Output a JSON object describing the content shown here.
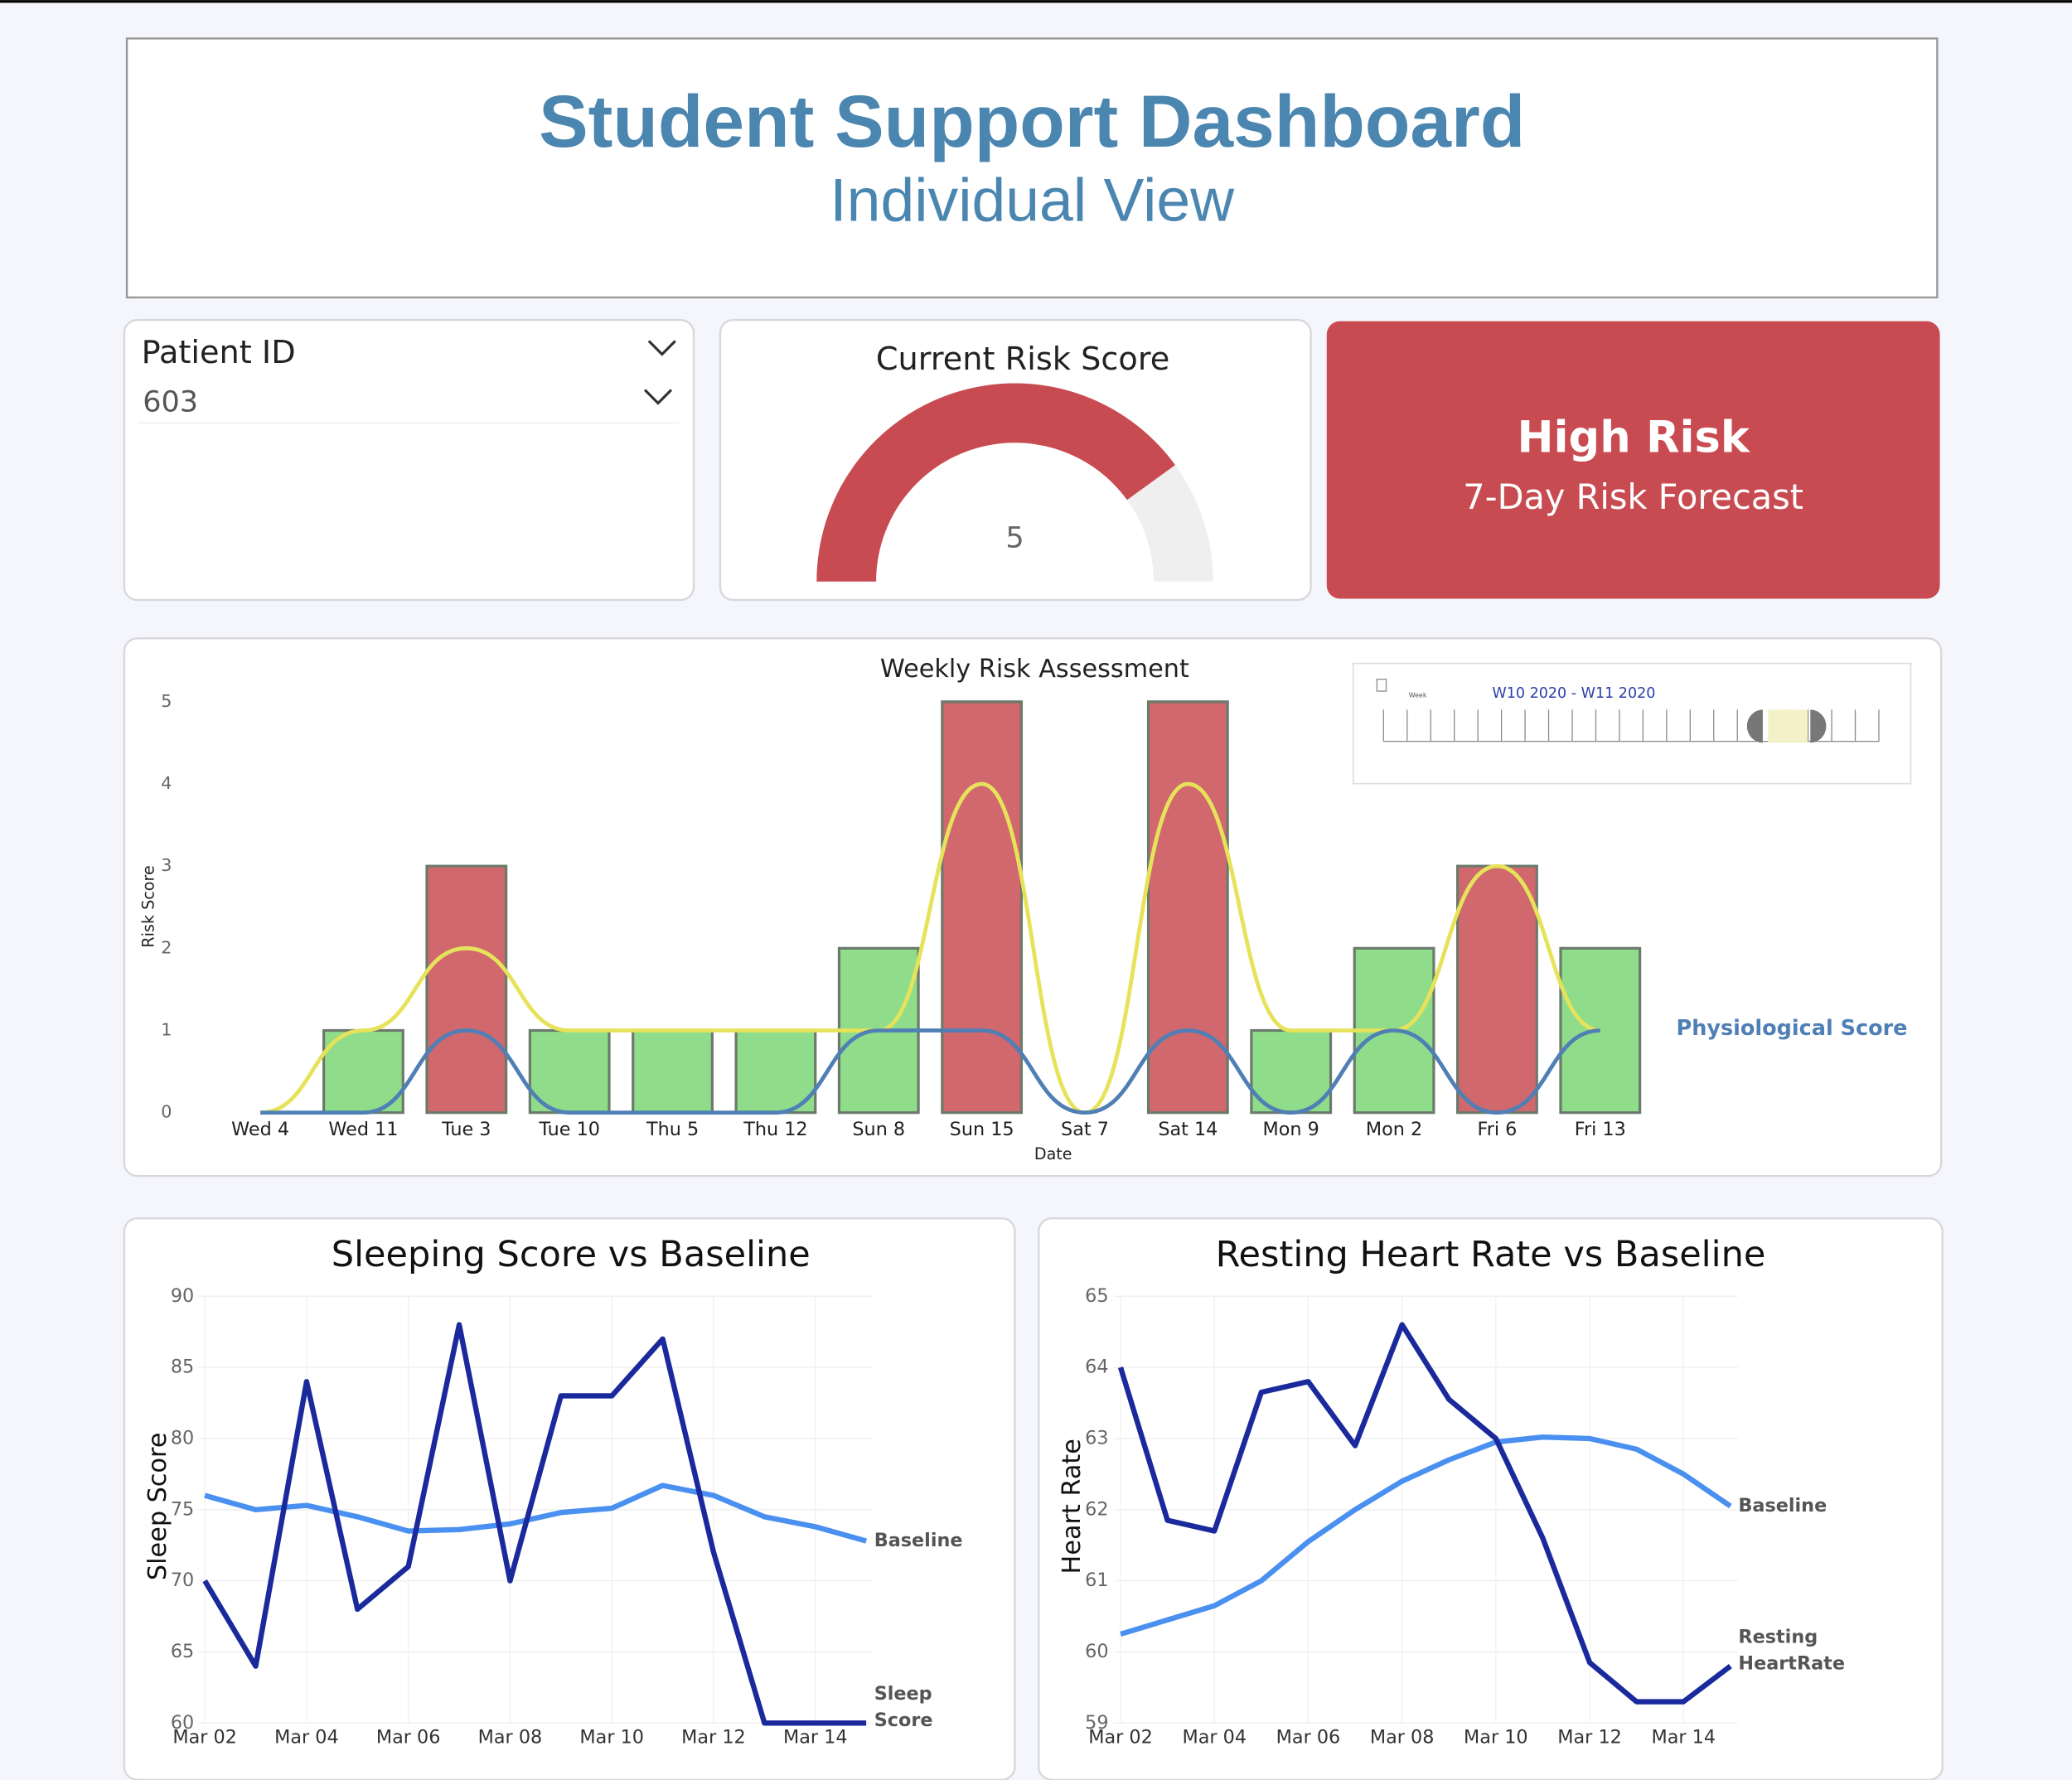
{
  "header": {
    "title": "Student Support Dashboard",
    "subtitle": "Individual View"
  },
  "patient_filter": {
    "label": "Patient ID",
    "value": "603"
  },
  "gauge": {
    "title": "Current Risk Score",
    "value": 5,
    "range": [
      0,
      6.25
    ],
    "color": "#c84b51"
  },
  "risk_card": {
    "title": "High Risk",
    "subtitle": "7-Day Risk Forecast",
    "color": "#c84b51"
  },
  "slicer": {
    "label": "Week",
    "range": "W10 2020 - W11 2020"
  },
  "chart_data": [
    {
      "type": "bar",
      "title": "Weekly Risk Assessment",
      "x_label": "Date",
      "y_label": "Risk Score",
      "categories": [
        "Wed 4",
        "Wed 11",
        "Tue 3",
        "Tue 10",
        "Thu 5",
        "Thu 12",
        "Sun 8",
        "Sun 15",
        "Sat 7",
        "Sat 14",
        "Mon 9",
        "Mon 2",
        "Fri 6",
        "Fri 13"
      ],
      "values": [
        0,
        1,
        3,
        1,
        1,
        1,
        2,
        5,
        0,
        5,
        1,
        2,
        3,
        2
      ],
      "colors": [
        "#8fdc8a",
        "#8fdc8a",
        "#d0686e",
        "#8fdc8a",
        "#8fdc8a",
        "#8fdc8a",
        "#8fdc8a",
        "#d0686e",
        "#8fdc8a",
        "#d0686e",
        "#8fdc8a",
        "#8fdc8a",
        "#d0686e",
        "#8fdc8a"
      ],
      "series": [
        {
          "color": "#e6e35a",
          "values": [
            0,
            1,
            2,
            1,
            1,
            1,
            1,
            4,
            0,
            4,
            1,
            1,
            3,
            1
          ]
        },
        {
          "name": "Physiological Score",
          "color": "#4f7fb5",
          "values": [
            0,
            0,
            1,
            0,
            0,
            0,
            1,
            1,
            0,
            1,
            0,
            1,
            0,
            1
          ]
        }
      ],
      "ylim": [
        0,
        5
      ],
      "yticks": [
        0,
        1,
        2,
        3,
        4,
        5
      ]
    },
    {
      "type": "line",
      "title": "Sleeping Score vs Baseline",
      "y_label": "Sleep Score",
      "x": [
        "Mar 02",
        "Mar 03",
        "Mar 04",
        "Mar 05",
        "Mar 06",
        "Mar 07",
        "Mar 08",
        "Mar 09",
        "Mar 10",
        "Mar 11",
        "Mar 12",
        "Mar 13",
        "Mar 14",
        "Mar 15"
      ],
      "xticks": [
        "Mar 02",
        "Mar 04",
        "Mar 06",
        "Mar 08",
        "Mar 10",
        "Mar 12",
        "Mar 14"
      ],
      "series": [
        {
          "name": "Baseline",
          "color": "#4a90f0",
          "values": [
            76,
            75,
            75.3,
            74.5,
            73.5,
            73.6,
            74,
            74.8,
            75.1,
            76.7,
            76,
            74.5,
            73.8,
            72.8
          ]
        },
        {
          "name": "Sleep Score",
          "color": "#1a2a9c",
          "values": [
            70,
            64,
            84,
            68,
            71,
            88,
            70,
            83,
            83,
            87,
            72,
            60,
            60,
            60
          ]
        }
      ],
      "ylim": [
        60,
        90
      ],
      "yticks": [
        60,
        65,
        70,
        75,
        80,
        85,
        90
      ]
    },
    {
      "type": "line",
      "title": "Resting Heart Rate vs Baseline",
      "y_label": "Heart Rate",
      "x": [
        "Mar 02",
        "Mar 03",
        "Mar 04",
        "Mar 05",
        "Mar 06",
        "Mar 07",
        "Mar 08",
        "Mar 09",
        "Mar 10",
        "Mar 11",
        "Mar 12",
        "Mar 13",
        "Mar 14",
        "Mar 15"
      ],
      "xticks": [
        "Mar 02",
        "Mar 04",
        "Mar 06",
        "Mar 08",
        "Mar 10",
        "Mar 12",
        "Mar 14"
      ],
      "series": [
        {
          "name": "Baseline",
          "color": "#4a90f0",
          "values": [
            60.25,
            60.45,
            60.65,
            61,
            61.55,
            62,
            62.4,
            62.7,
            62.95,
            63.02,
            63,
            62.85,
            62.5,
            62.05
          ]
        },
        {
          "name": "Resting HeartRate",
          "color": "#1a2a9c",
          "values": [
            64,
            61.85,
            61.7,
            63.65,
            63.8,
            62.9,
            64.6,
            63.55,
            63,
            61.6,
            59.85,
            59.3,
            59.3,
            59.8
          ]
        }
      ],
      "ylim": [
        59,
        65
      ],
      "yticks": [
        59,
        60,
        61,
        62,
        63,
        64,
        65
      ]
    }
  ]
}
